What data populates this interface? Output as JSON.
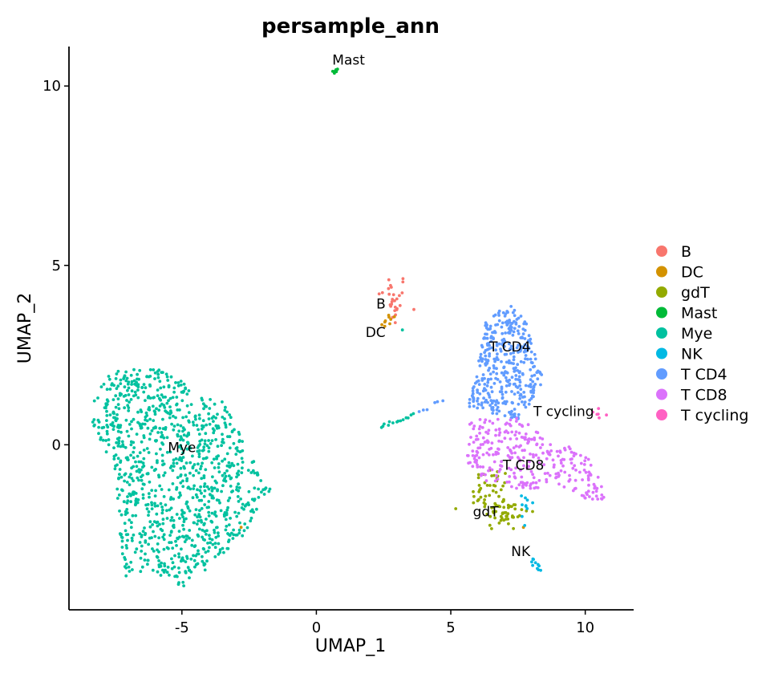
{
  "chart_data": {
    "type": "scatter",
    "title": "persample_ann",
    "xlabel": "UMAP_1",
    "ylabel": "UMAP_2",
    "xlim": [
      -9.2,
      11.8
    ],
    "ylim": [
      -4.6,
      11.1
    ],
    "xticks": [
      -5,
      0,
      5,
      10
    ],
    "yticks": [
      0,
      5,
      10
    ],
    "legend_position": "right",
    "series": [
      {
        "name": "B",
        "color": "#F8766D",
        "label": "B",
        "label_at": [
          2.4,
          3.8
        ],
        "clusters": [
          {
            "shape": "ellipse",
            "center": [
              2.85,
              4.05
            ],
            "spread": [
              0.28,
              0.38
            ],
            "n": 28
          }
        ]
      },
      {
        "name": "DC",
        "color": "#D39200",
        "label": "DC",
        "label_at": [
          2.2,
          3.0
        ],
        "clusters": [
          {
            "shape": "ellipse",
            "center": [
              2.7,
              3.45
            ],
            "spread": [
              0.18,
              0.12
            ],
            "n": 9
          },
          {
            "shape": "points",
            "points": [
              [
                -2.8,
                -2.3
              ],
              [
                7.7,
                -2.3
              ]
            ]
          }
        ]
      },
      {
        "name": "gdT",
        "color": "#93AA00",
        "label": "gdT",
        "label_at": [
          6.3,
          -2.0
        ],
        "clusters": [
          {
            "shape": "ellipse",
            "center": [
              6.5,
              -1.3
            ],
            "spread": [
              0.35,
              0.35
            ],
            "n": 45
          },
          {
            "shape": "ellipse",
            "center": [
              7.0,
              -1.9
            ],
            "spread": [
              0.45,
              0.25
            ],
            "n": 45
          }
        ]
      },
      {
        "name": "Mast",
        "color": "#00BA38",
        "label": "Mast",
        "label_at": [
          1.2,
          10.6
        ],
        "clusters": [
          {
            "shape": "ellipse",
            "center": [
              0.7,
              10.4
            ],
            "spread": [
              0.06,
              0.05
            ],
            "n": 7
          }
        ]
      },
      {
        "name": "Mye",
        "color": "#00C19F",
        "label": "Mye",
        "label_at": [
          -5.0,
          -0.2
        ],
        "clusters": [
          {
            "shape": "polygon",
            "vertices": [
              [
                -8.3,
                1.3
              ],
              [
                -7.6,
                2.1
              ],
              [
                -5.5,
                2.1
              ],
              [
                -4.5,
                1.4
              ],
              [
                -3.5,
                1.2
              ],
              [
                -2.0,
                -0.8
              ],
              [
                -1.5,
                -1.1
              ],
              [
                -2.8,
                -2.6
              ],
              [
                -3.6,
                -3.2
              ],
              [
                -5.0,
                -4.0
              ],
              [
                -6.2,
                -3.5
              ],
              [
                -7.2,
                -3.7
              ],
              [
                -7.5,
                -0.7
              ],
              [
                -8.4,
                0.6
              ]
            ],
            "n": 1050
          },
          {
            "shape": "line",
            "from": [
              2.4,
              0.5
            ],
            "to": [
              3.6,
              0.85
            ],
            "n": 14
          },
          {
            "shape": "points",
            "points": [
              [
                3.2,
                3.2
              ]
            ]
          }
        ]
      },
      {
        "name": "NK",
        "color": "#00B9E3",
        "label": "NK",
        "label_at": [
          7.6,
          -3.1
        ],
        "clusters": [
          {
            "shape": "line",
            "from": [
              8.0,
              -3.2
            ],
            "to": [
              8.35,
              -3.5
            ],
            "n": 10
          },
          {
            "shape": "ellipse",
            "center": [
              7.7,
              -1.6
            ],
            "spread": [
              0.15,
              0.1
            ],
            "n": 8
          },
          {
            "shape": "points",
            "points": [
              [
                7.75,
                -2.25
              ],
              [
                7.65,
                -2.0
              ]
            ]
          }
        ]
      },
      {
        "name": "T CD4",
        "color": "#619CFF",
        "label": "T CD4",
        "label_at": [
          7.2,
          2.6
        ],
        "clusters": [
          {
            "shape": "polygon",
            "vertices": [
              [
                5.6,
                1.0
              ],
              [
                6.0,
                2.2
              ],
              [
                6.3,
                3.4
              ],
              [
                7.2,
                4.0
              ],
              [
                7.8,
                3.4
              ],
              [
                8.4,
                2.0
              ],
              [
                8.3,
                1.4
              ],
              [
                7.7,
                0.7
              ],
              [
                6.7,
                0.8
              ]
            ],
            "n": 380
          },
          {
            "shape": "line",
            "from": [
              3.8,
              0.9
            ],
            "to": [
              4.7,
              1.3
            ],
            "n": 6
          }
        ]
      },
      {
        "name": "T CD8",
        "color": "#DB72FB",
        "label": "T CD8",
        "label_at": [
          7.7,
          -0.7
        ],
        "clusters": [
          {
            "shape": "polygon",
            "vertices": [
              [
                5.7,
                0.7
              ],
              [
                7.5,
                0.8
              ],
              [
                9.0,
                -0.1
              ],
              [
                9.9,
                0.0
              ],
              [
                10.2,
                -0.5
              ],
              [
                10.9,
                -1.5
              ],
              [
                10.3,
                -1.6
              ],
              [
                9.0,
                -1.1
              ],
              [
                7.8,
                -1.3
              ],
              [
                6.3,
                -1.0
              ],
              [
                5.6,
                -0.5
              ]
            ],
            "n": 300
          }
        ]
      },
      {
        "name": "T cycling",
        "color": "#FF61C3",
        "label": "T cycling",
        "label_at": [
          9.2,
          0.8
        ],
        "clusters": [
          {
            "shape": "ellipse",
            "center": [
              10.55,
              0.88
            ],
            "spread": [
              0.15,
              0.06
            ],
            "n": 6
          }
        ]
      }
    ]
  }
}
